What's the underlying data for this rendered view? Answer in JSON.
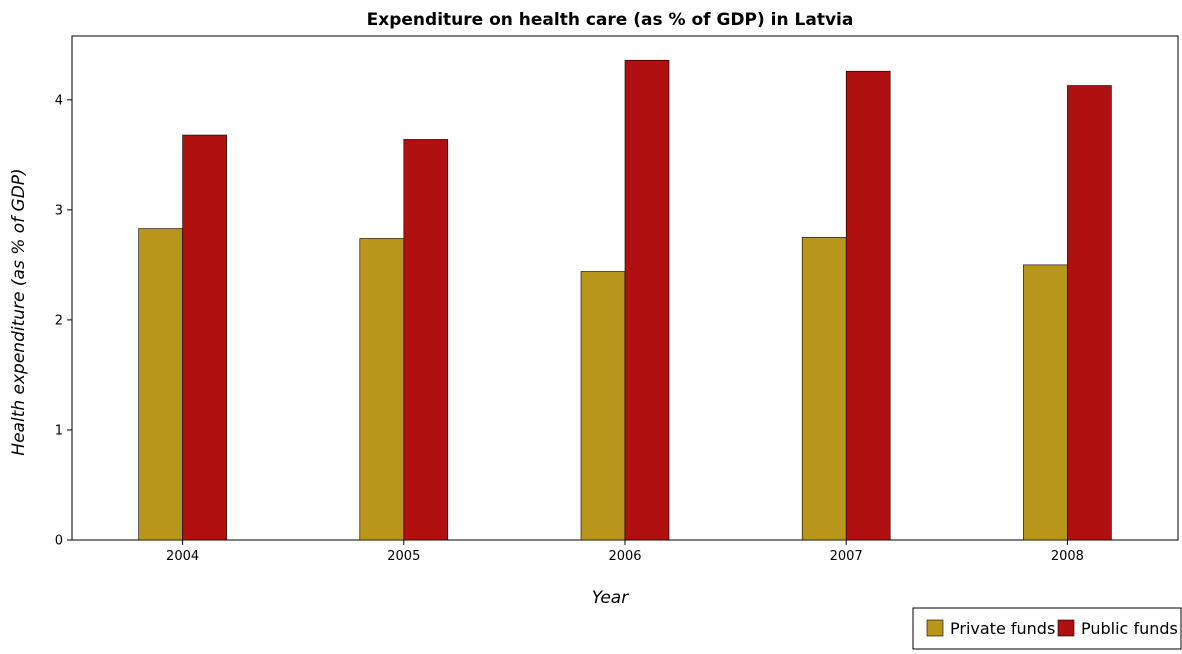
{
  "chart_data": {
    "type": "bar",
    "title": "Expenditure on health care (as % of GDP) in Latvia",
    "xlabel": "Year",
    "ylabel": "Health expenditure (as % of GDP)",
    "categories": [
      "2004",
      "2005",
      "2006",
      "2007",
      "2008"
    ],
    "series": [
      {
        "name": "Private funds",
        "color": "#b8961c",
        "values": [
          2.83,
          2.74,
          2.44,
          2.75,
          2.5
        ]
      },
      {
        "name": "Public funds",
        "color": "#b01010",
        "values": [
          3.68,
          3.64,
          4.36,
          4.26,
          4.13
        ]
      }
    ],
    "ylim": [
      0,
      4.58
    ],
    "yticks": [
      0,
      1,
      2,
      3,
      4
    ],
    "ytick_labels": [
      "0",
      "1",
      "2",
      "3",
      "4"
    ],
    "grid": false,
    "legend_position": "bottom-right"
  }
}
